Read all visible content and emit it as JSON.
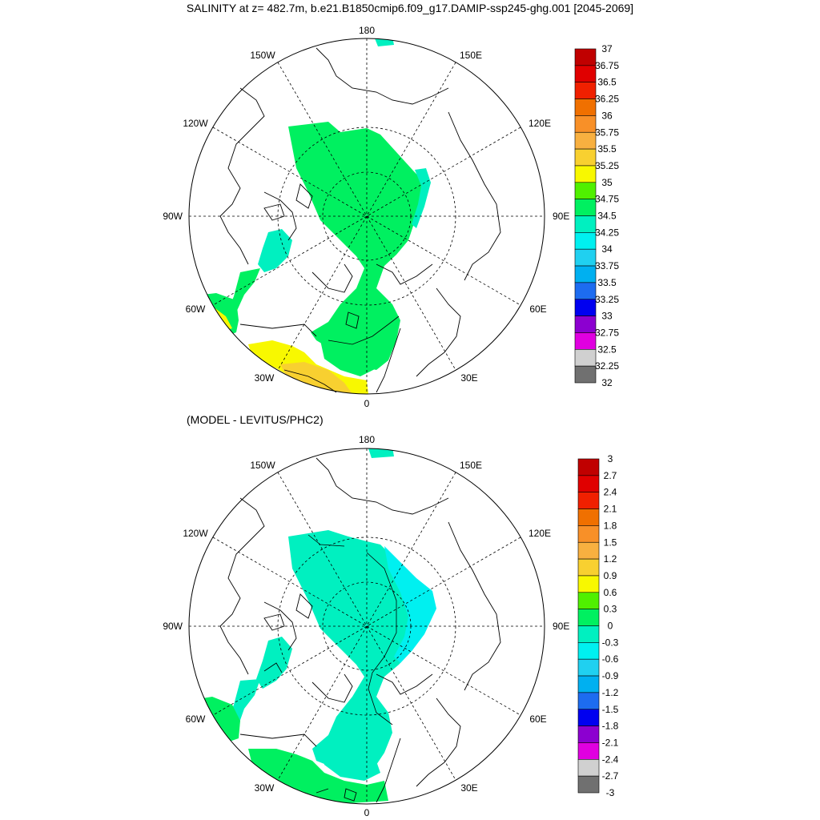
{
  "title": "SALINITY at z= 482.7m, b.e21.B1850cmip6.f09_g17.DAMIP-ssp245-ghg.001 [2045-2069]",
  "subtitle": "(MODEL - LEVITUS/PHC2)",
  "meridian_labels": {
    "top": "180",
    "bottom": "0",
    "left": "90W",
    "right": "90E",
    "upper_left_1": "150W",
    "upper_right_1": "150E",
    "upper_left_2": "120W",
    "upper_right_2": "120E",
    "lower_left_2": "60W",
    "lower_right_2": "60E",
    "lower_left_1": "30W",
    "lower_right_1": "30E"
  },
  "colors": {
    "gray_dark": "#707070",
    "gray_light": "#d0d0d0",
    "magenta": "#e000e0",
    "purple": "#8c00d0",
    "blue": "#0000f0",
    "blue_mid": "#1d6cf0",
    "sky": "#00b0f0",
    "sky_light": "#20d0f0",
    "cyan": "#00f0f0",
    "aqua": "#00f0c0",
    "green": "#00f060",
    "lime": "#50f000",
    "yellow": "#f8f800",
    "gold": "#f8d030",
    "orange_light": "#f8b040",
    "orange": "#f89028",
    "orange_dark": "#f07000",
    "red": "#f02000",
    "red_mid": "#e00000",
    "red_dark": "#c00000"
  },
  "top_map": {
    "colorbar": {
      "labels": [
        "37",
        "36.75",
        "36.5",
        "36.25",
        "36",
        "35.75",
        "35.5",
        "35.25",
        "35",
        "34.75",
        "34.5",
        "34.25",
        "34",
        "33.75",
        "33.5",
        "33.25",
        "33",
        "32.75",
        "32.5",
        "32.25",
        "32"
      ],
      "swatches": [
        "red_dark",
        "red_mid",
        "red",
        "orange_dark",
        "orange",
        "orange_light",
        "gold",
        "yellow",
        "lime",
        "green",
        "aqua",
        "cyan",
        "sky_light",
        "sky",
        "blue_mid",
        "blue",
        "purple",
        "magenta",
        "gray_light",
        "gray_dark"
      ]
    }
  },
  "bottom_map": {
    "colorbar": {
      "labels": [
        "3",
        "2.7",
        "2.4",
        "2.1",
        "1.8",
        "1.5",
        "1.2",
        "0.9",
        "0.6",
        "0.3",
        "0",
        "-0.3",
        "-0.6",
        "-0.9",
        "-1.2",
        "-1.5",
        "-1.8",
        "-2.1",
        "-2.4",
        "-2.7",
        "-3"
      ],
      "swatches": [
        "red_dark",
        "red_mid",
        "red",
        "orange_dark",
        "orange",
        "orange_light",
        "gold",
        "yellow",
        "lime",
        "green",
        "aqua",
        "cyan",
        "sky_light",
        "sky",
        "blue_mid",
        "blue",
        "purple",
        "magenta",
        "gray_light",
        "gray_dark"
      ]
    }
  }
}
